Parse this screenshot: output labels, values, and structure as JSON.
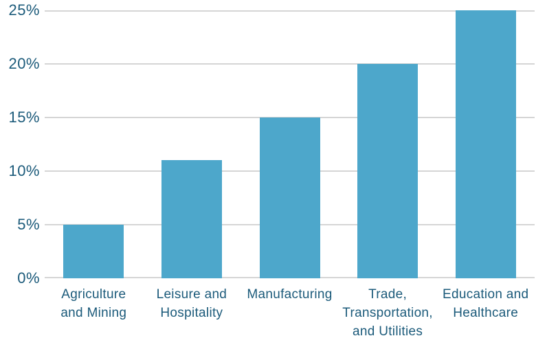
{
  "chart_data": {
    "type": "bar",
    "title": "",
    "xlabel": "",
    "ylabel": "",
    "categories": [
      "Agriculture and Mining",
      "Leisure and Hospitality",
      "Manufacturing",
      "Trade, Transportation, and Utilities",
      "Education and Healthcare"
    ],
    "values": [
      5,
      11,
      15,
      20,
      25
    ],
    "value_unit": "%",
    "category_label_lines": [
      [
        "Agriculture",
        "and Mining"
      ],
      [
        "Leisure and",
        "Hospitality"
      ],
      [
        "Manufacturing"
      ],
      [
        "Trade,",
        "Transportation,",
        "and Utilities"
      ],
      [
        "Education and",
        "Healthcare"
      ]
    ],
    "ylim": [
      0,
      25
    ],
    "ytick_step": 5,
    "ytick_labels": [
      "0%",
      "5%",
      "10%",
      "15%",
      "20%",
      "25%"
    ],
    "grid": true,
    "legend": false,
    "colors": {
      "bar": "#4DA7CB",
      "text": "#1B5A7A",
      "gridline": "#D5D5D5",
      "background": "#FFFFFF"
    }
  }
}
